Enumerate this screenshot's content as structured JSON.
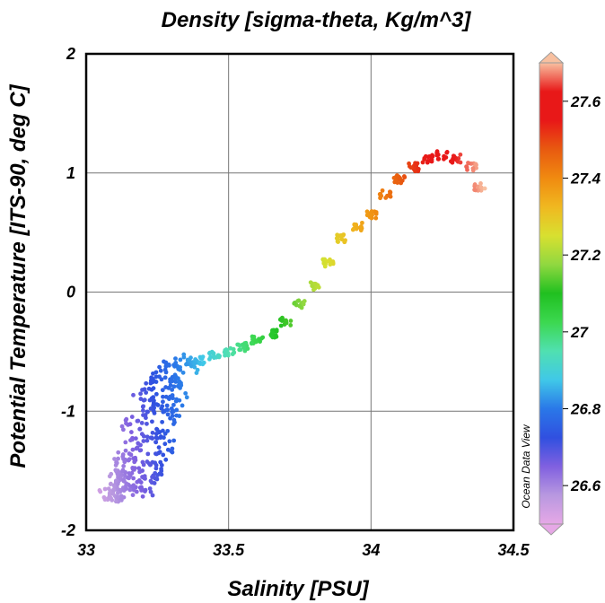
{
  "chart_data": {
    "type": "scatter",
    "title": "Density [sigma-theta, Kg/m^3]",
    "xlabel": "Salinity [PSU]",
    "ylabel": "Potential Temperature [ITS-90, deg C]",
    "xlim": [
      33,
      34.5
    ],
    "ylim": [
      -2,
      2
    ],
    "xticks": [
      33,
      33.5,
      34,
      34.5
    ],
    "xtick_labels": [
      "33",
      "33.5",
      "34",
      "34.5"
    ],
    "yticks": [
      -2,
      -1,
      0,
      1,
      2
    ],
    "ytick_labels": [
      "-2",
      "-1",
      "0",
      "1",
      "2"
    ],
    "grid": true,
    "colorbar": {
      "variable": "Density [sigma-theta, Kg/m^3]",
      "range": [
        26.5,
        27.7
      ],
      "ticks": [
        26.6,
        26.8,
        27,
        27.2,
        27.4,
        27.6
      ],
      "tick_labels": [
        "26.6",
        "26.8",
        "27",
        "27.2",
        "27.4",
        "27.6"
      ],
      "colormap": [
        "#e6a8e6",
        "#b898e0",
        "#8060e0",
        "#3050e0",
        "#2a78e8",
        "#40c8e8",
        "#50e0b0",
        "#3cd850",
        "#20c020",
        "#90d840",
        "#d8e030",
        "#f0b820",
        "#f08a10",
        "#e85a10",
        "#e81818",
        "#e81818",
        "#f8c0a0"
      ]
    },
    "watermark": "Ocean Data View",
    "series": [
      {
        "color_by": "density",
        "points": [
          [
            33.07,
            -1.71
          ],
          [
            33.09,
            -1.72
          ],
          [
            33.11,
            -1.7
          ],
          [
            33.1,
            -1.66
          ],
          [
            33.12,
            -1.63
          ],
          [
            33.14,
            -1.58
          ],
          [
            33.1,
            -1.55
          ],
          [
            33.13,
            -1.5
          ],
          [
            33.16,
            -1.62
          ],
          [
            33.18,
            -1.66
          ],
          [
            33.2,
            -1.65
          ],
          [
            33.22,
            -1.6
          ],
          [
            33.15,
            -1.45
          ],
          [
            33.13,
            -1.38
          ],
          [
            33.17,
            -1.32
          ],
          [
            33.2,
            -1.45
          ],
          [
            33.23,
            -1.52
          ],
          [
            33.25,
            -1.4
          ],
          [
            33.19,
            -1.2
          ],
          [
            33.16,
            -1.1
          ],
          [
            33.21,
            -1.05
          ],
          [
            33.24,
            -1.22
          ],
          [
            33.27,
            -1.3
          ],
          [
            33.22,
            -0.95
          ],
          [
            33.2,
            -0.85
          ],
          [
            33.24,
            -0.8
          ],
          [
            33.26,
            -0.92
          ],
          [
            33.29,
            -1.05
          ],
          [
            33.25,
            -0.7
          ],
          [
            33.28,
            -0.65
          ],
          [
            33.3,
            -0.78
          ],
          [
            33.32,
            -0.9
          ],
          [
            33.3,
            -0.6
          ],
          [
            33.34,
            -0.58
          ],
          [
            33.36,
            -0.62
          ],
          [
            33.33,
            -0.75
          ],
          [
            33.3,
            -1.0
          ],
          [
            33.28,
            -1.2
          ],
          [
            33.4,
            -0.57
          ],
          [
            33.45,
            -0.53
          ],
          [
            33.5,
            -0.5
          ],
          [
            33.55,
            -0.46
          ],
          [
            33.6,
            -0.4
          ],
          [
            33.65,
            -0.35
          ],
          [
            33.7,
            -0.25
          ],
          [
            33.75,
            -0.1
          ],
          [
            33.8,
            0.05
          ],
          [
            33.85,
            0.25
          ],
          [
            33.9,
            0.45
          ],
          [
            33.95,
            0.55
          ],
          [
            34.0,
            0.65
          ],
          [
            34.05,
            0.82
          ],
          [
            34.1,
            0.95
          ],
          [
            34.15,
            1.05
          ],
          [
            34.2,
            1.12
          ],
          [
            34.25,
            1.15
          ],
          [
            34.3,
            1.12
          ],
          [
            34.35,
            1.05
          ],
          [
            34.38,
            0.88
          ]
        ]
      }
    ]
  }
}
